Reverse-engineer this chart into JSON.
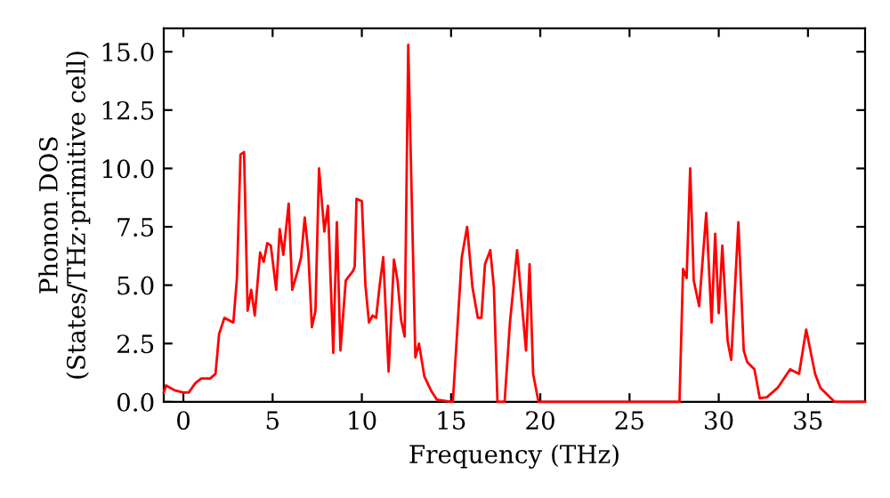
{
  "chart_data": {
    "type": "line",
    "xlabel": "Frequency (THz)",
    "ylabel": "Phonon DOS\n(States/THz·primitive cell)",
    "xlim": [
      -1.1,
      38.2
    ],
    "ylim": [
      0,
      16
    ],
    "xticks": [
      0,
      5,
      10,
      15,
      20,
      25,
      30,
      35
    ],
    "yticks": [
      {
        "value": 0,
        "label": "0.0"
      },
      {
        "value": 2.5,
        "label": "2.5"
      },
      {
        "value": 5,
        "label": "5.0"
      },
      {
        "value": 7.5,
        "label": "7.5"
      },
      {
        "value": 10,
        "label": "10.0"
      },
      {
        "value": 12.5,
        "label": "12.5"
      },
      {
        "value": 15,
        "label": "15.0"
      }
    ],
    "grid": false,
    "marker": "none",
    "line_style": "solid",
    "series": [
      {
        "color": "#ff0000",
        "x": [
          -1.1,
          -0.97,
          -0.5,
          0,
          0.3,
          0.67,
          1.0,
          1.5,
          1.8,
          2.0,
          2.3,
          2.8,
          3.0,
          3.2,
          3.4,
          3.6,
          3.8,
          4.0,
          4.3,
          4.5,
          4.7,
          4.9,
          5.2,
          5.4,
          5.6,
          5.9,
          6.1,
          6.4,
          6.6,
          6.8,
          7.0,
          7.2,
          7.4,
          7.6,
          7.9,
          8.1,
          8.4,
          8.6,
          8.8,
          9.1,
          9.5,
          9.6,
          9.7,
          10.0,
          10.2,
          10.4,
          10.6,
          10.8,
          11.0,
          11.2,
          11.5,
          11.8,
          12.0,
          12.2,
          12.4,
          12.6,
          13.0,
          13.2,
          13.5,
          13.9,
          14.2,
          15.0,
          15.1,
          15.6,
          15.9,
          16.2,
          16.5,
          16.7,
          16.9,
          17.2,
          17.4,
          17.6,
          18.0,
          18.3,
          18.7,
          19.2,
          19.4,
          19.6,
          19.9,
          27.8,
          28.0,
          28.2,
          28.4,
          28.6,
          28.9,
          29.3,
          29.6,
          29.8,
          30.0,
          30.2,
          30.5,
          30.7,
          31.1,
          31.4,
          31.6,
          32.0,
          32.3,
          32.7,
          33.3,
          34.0,
          34.5,
          34.9,
          35.4,
          35.7,
          36.5,
          38.2
        ],
        "values": [
          0.4,
          0.7,
          0.5,
          0.4,
          0.4,
          0.8,
          1.0,
          1.0,
          1.2,
          2.9,
          3.6,
          3.4,
          5.3,
          10.6,
          10.7,
          3.9,
          4.8,
          3.7,
          6.4,
          6.0,
          6.8,
          6.7,
          4.8,
          7.4,
          6.3,
          8.5,
          4.8,
          5.6,
          6.2,
          7.9,
          6.4,
          3.2,
          3.9,
          10.0,
          7.3,
          8.4,
          2.1,
          7.7,
          2.2,
          5.2,
          5.6,
          5.8,
          8.7,
          8.6,
          5.0,
          3.4,
          3.7,
          3.6,
          5.0,
          6.2,
          1.3,
          6.1,
          5.2,
          3.5,
          2.8,
          15.3,
          1.9,
          2.5,
          1.1,
          0.45,
          0.1,
          0,
          0,
          6.2,
          7.5,
          4.9,
          3.6,
          3.6,
          5.9,
          6.5,
          4.9,
          0,
          0,
          3.4,
          6.5,
          2.2,
          5.9,
          1.2,
          0,
          0,
          5.7,
          5.3,
          10.0,
          5.2,
          4.1,
          8.1,
          3.4,
          7.2,
          3.8,
          6.7,
          2.6,
          1.8,
          7.7,
          2.2,
          1.7,
          1.4,
          0.15,
          0.2,
          0.6,
          1.4,
          1.2,
          3.1,
          1.2,
          0.6,
          0,
          0
        ]
      }
    ]
  }
}
